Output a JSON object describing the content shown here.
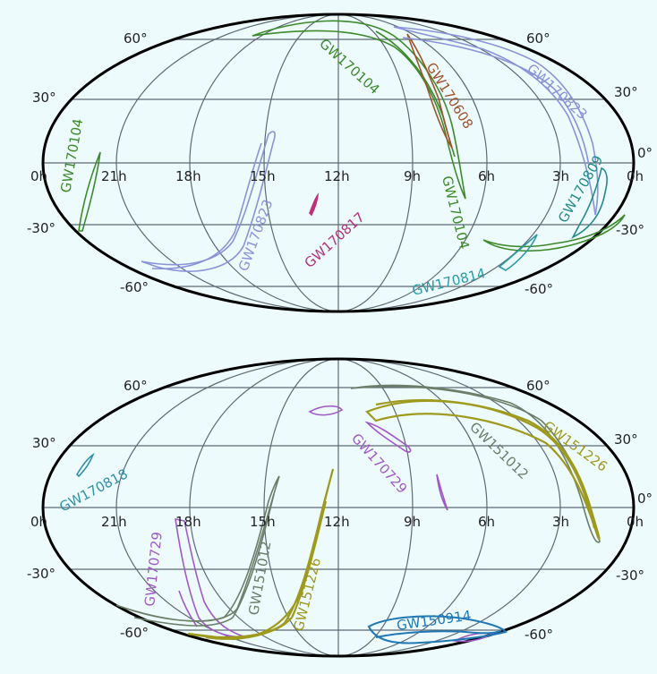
{
  "maps": [
    {
      "id": "top",
      "lat_labels": [
        "60°",
        "30°",
        "0°",
        "-30°",
        "-60°"
      ],
      "lon_labels": [
        "0h",
        "21h",
        "18h",
        "15h",
        "12h",
        "9h",
        "6h",
        "3h",
        "0h"
      ],
      "events": [
        {
          "key": "gw170104_left",
          "label": "GW170104",
          "color": "#3d8a2c"
        },
        {
          "key": "gw170104_main",
          "label": "GW170104",
          "color": "#3d8a2c"
        },
        {
          "key": "gw170104_lower",
          "label": "GW170104",
          "color": "#3d8a2c"
        },
        {
          "key": "gw170608",
          "label": "GW170608",
          "color": "#a0522d"
        },
        {
          "key": "gw170823_top",
          "label": "GW170823",
          "color": "#8a93d8"
        },
        {
          "key": "gw170823_left",
          "label": "GW170823",
          "color": "#8a93d8"
        },
        {
          "key": "gw170809",
          "label": "GW170809",
          "color": "#238b8b"
        },
        {
          "key": "gw170817",
          "label": "GW170817",
          "color": "#c0307a"
        },
        {
          "key": "gw170814",
          "label": "GW170814",
          "color": "#2a9aa4"
        }
      ]
    },
    {
      "id": "bottom",
      "lat_labels": [
        "60°",
        "30°",
        "0°",
        "-30°",
        "-60°"
      ],
      "lon_labels": [
        "0h",
        "21h",
        "18h",
        "15h",
        "12h",
        "9h",
        "6h",
        "3h",
        "0h"
      ],
      "events": [
        {
          "key": "gw170818",
          "label": "GW170818",
          "color": "#2f8fa8"
        },
        {
          "key": "gw170729_top",
          "label": "GW170729",
          "color": "#a05ac8"
        },
        {
          "key": "gw170729_left",
          "label": "GW170729",
          "color": "#a05ac8"
        },
        {
          "key": "gw151012_top",
          "label": "GW151012",
          "color": "#6b7e6a"
        },
        {
          "key": "gw151012_left",
          "label": "GW151012",
          "color": "#6b7e6a"
        },
        {
          "key": "gw151226_top",
          "label": "GW151226",
          "color": "#9e9a1e"
        },
        {
          "key": "gw151226_left",
          "label": "GW151226",
          "color": "#9e9a1e"
        },
        {
          "key": "gw150914",
          "label": "GW150914",
          "color": "#1f78b4"
        }
      ]
    }
  ],
  "colors": {
    "background": "#eefbfd",
    "grid": "#5e6a74",
    "outline": "#000000"
  }
}
